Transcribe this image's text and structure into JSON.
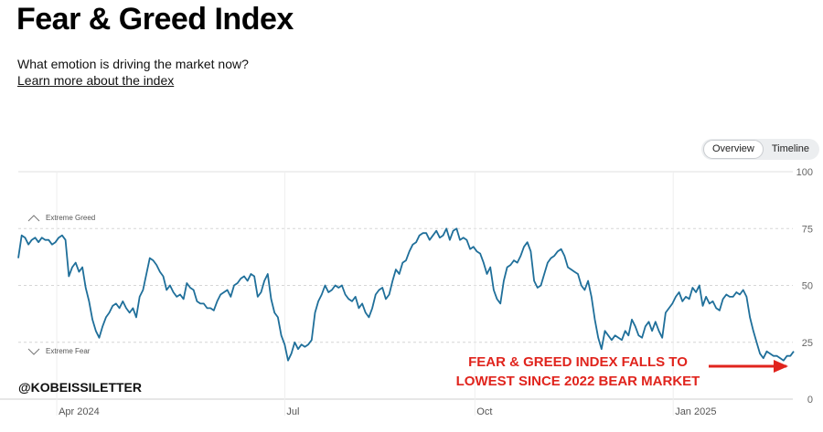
{
  "header": {
    "title": "Fear & Greed Index",
    "subtitle": "What emotion is driving the market now?",
    "learn_link": "Learn more about the index"
  },
  "view_toggle": {
    "options": [
      "Overview",
      "Timeline"
    ],
    "selected": "Overview"
  },
  "zones": {
    "greed_label": "Extreme Greed",
    "fear_label": "Extreme Fear"
  },
  "annotation": {
    "line1": "FEAR & GREED INDEX FALLS TO",
    "line2": "LOWEST SINCE 2022 BEAR MARKET",
    "arrow_icon": "arrow-right-icon"
  },
  "watermark": "@KOBEISSILETTER",
  "colors": {
    "line": "#1f6f9a",
    "annotation": "#e0241d",
    "grid": "#d6d6d6"
  },
  "chart_data": {
    "type": "line",
    "title": "",
    "xlabel": "",
    "ylabel": "",
    "ylim": [
      0,
      100
    ],
    "y_ticks": [
      0,
      25,
      50,
      75,
      100
    ],
    "x_ticks": [
      {
        "label": "Apr 2024",
        "x": 0.069
      },
      {
        "label": "Jul",
        "x": 0.346
      },
      {
        "label": "Oct",
        "x": 0.577
      },
      {
        "label": "Jan 2025",
        "x": 0.818
      }
    ],
    "grid": true,
    "series": [
      {
        "values": [
          62,
          72,
          71,
          68,
          70,
          71,
          69,
          71,
          70,
          70,
          68,
          69,
          71,
          72,
          70,
          54,
          58,
          60,
          56,
          58,
          49,
          43,
          35,
          30,
          27,
          32,
          36,
          38,
          41,
          42,
          40,
          43,
          40,
          38,
          40,
          36,
          45,
          48,
          55,
          62,
          61,
          59,
          56,
          54,
          48,
          50,
          47,
          45,
          46,
          44,
          51,
          49,
          48,
          43,
          42,
          42,
          40,
          40,
          39,
          43,
          46,
          47,
          48,
          45,
          50,
          51,
          53,
          54,
          52,
          55,
          54,
          45,
          47,
          52,
          55,
          44,
          38,
          36,
          28,
          24,
          17,
          20,
          25,
          22,
          24,
          23,
          24,
          26,
          38,
          43,
          46,
          50,
          47,
          48,
          50,
          49,
          50,
          46,
          44,
          43,
          45,
          40,
          42,
          38,
          36,
          40,
          46,
          48,
          49,
          44,
          46,
          52,
          57,
          55,
          60,
          61,
          65,
          68,
          69,
          72,
          73,
          73,
          70,
          72,
          74,
          71,
          72,
          75,
          70,
          74,
          75,
          70,
          71,
          70,
          66,
          67,
          65,
          64,
          60,
          55,
          58,
          48,
          44,
          42,
          52,
          58,
          59,
          61,
          60,
          63,
          67,
          69,
          65,
          52,
          49,
          50,
          55,
          60,
          62,
          63,
          65,
          66,
          63,
          58,
          57,
          56,
          55,
          50,
          48,
          52,
          45,
          35,
          27,
          22,
          30,
          28,
          26,
          28,
          27,
          26,
          30,
          28,
          35,
          32,
          28,
          27,
          32,
          34,
          30,
          34,
          30,
          27,
          38,
          40,
          42,
          45,
          47,
          43,
          45,
          44,
          49,
          47,
          50,
          41,
          45,
          42,
          43,
          40,
          39,
          44,
          46,
          45,
          45,
          47,
          46,
          48,
          45,
          36,
          30,
          25,
          20,
          18,
          21,
          20,
          19,
          19,
          18,
          17,
          19,
          19,
          21
        ]
      }
    ]
  }
}
